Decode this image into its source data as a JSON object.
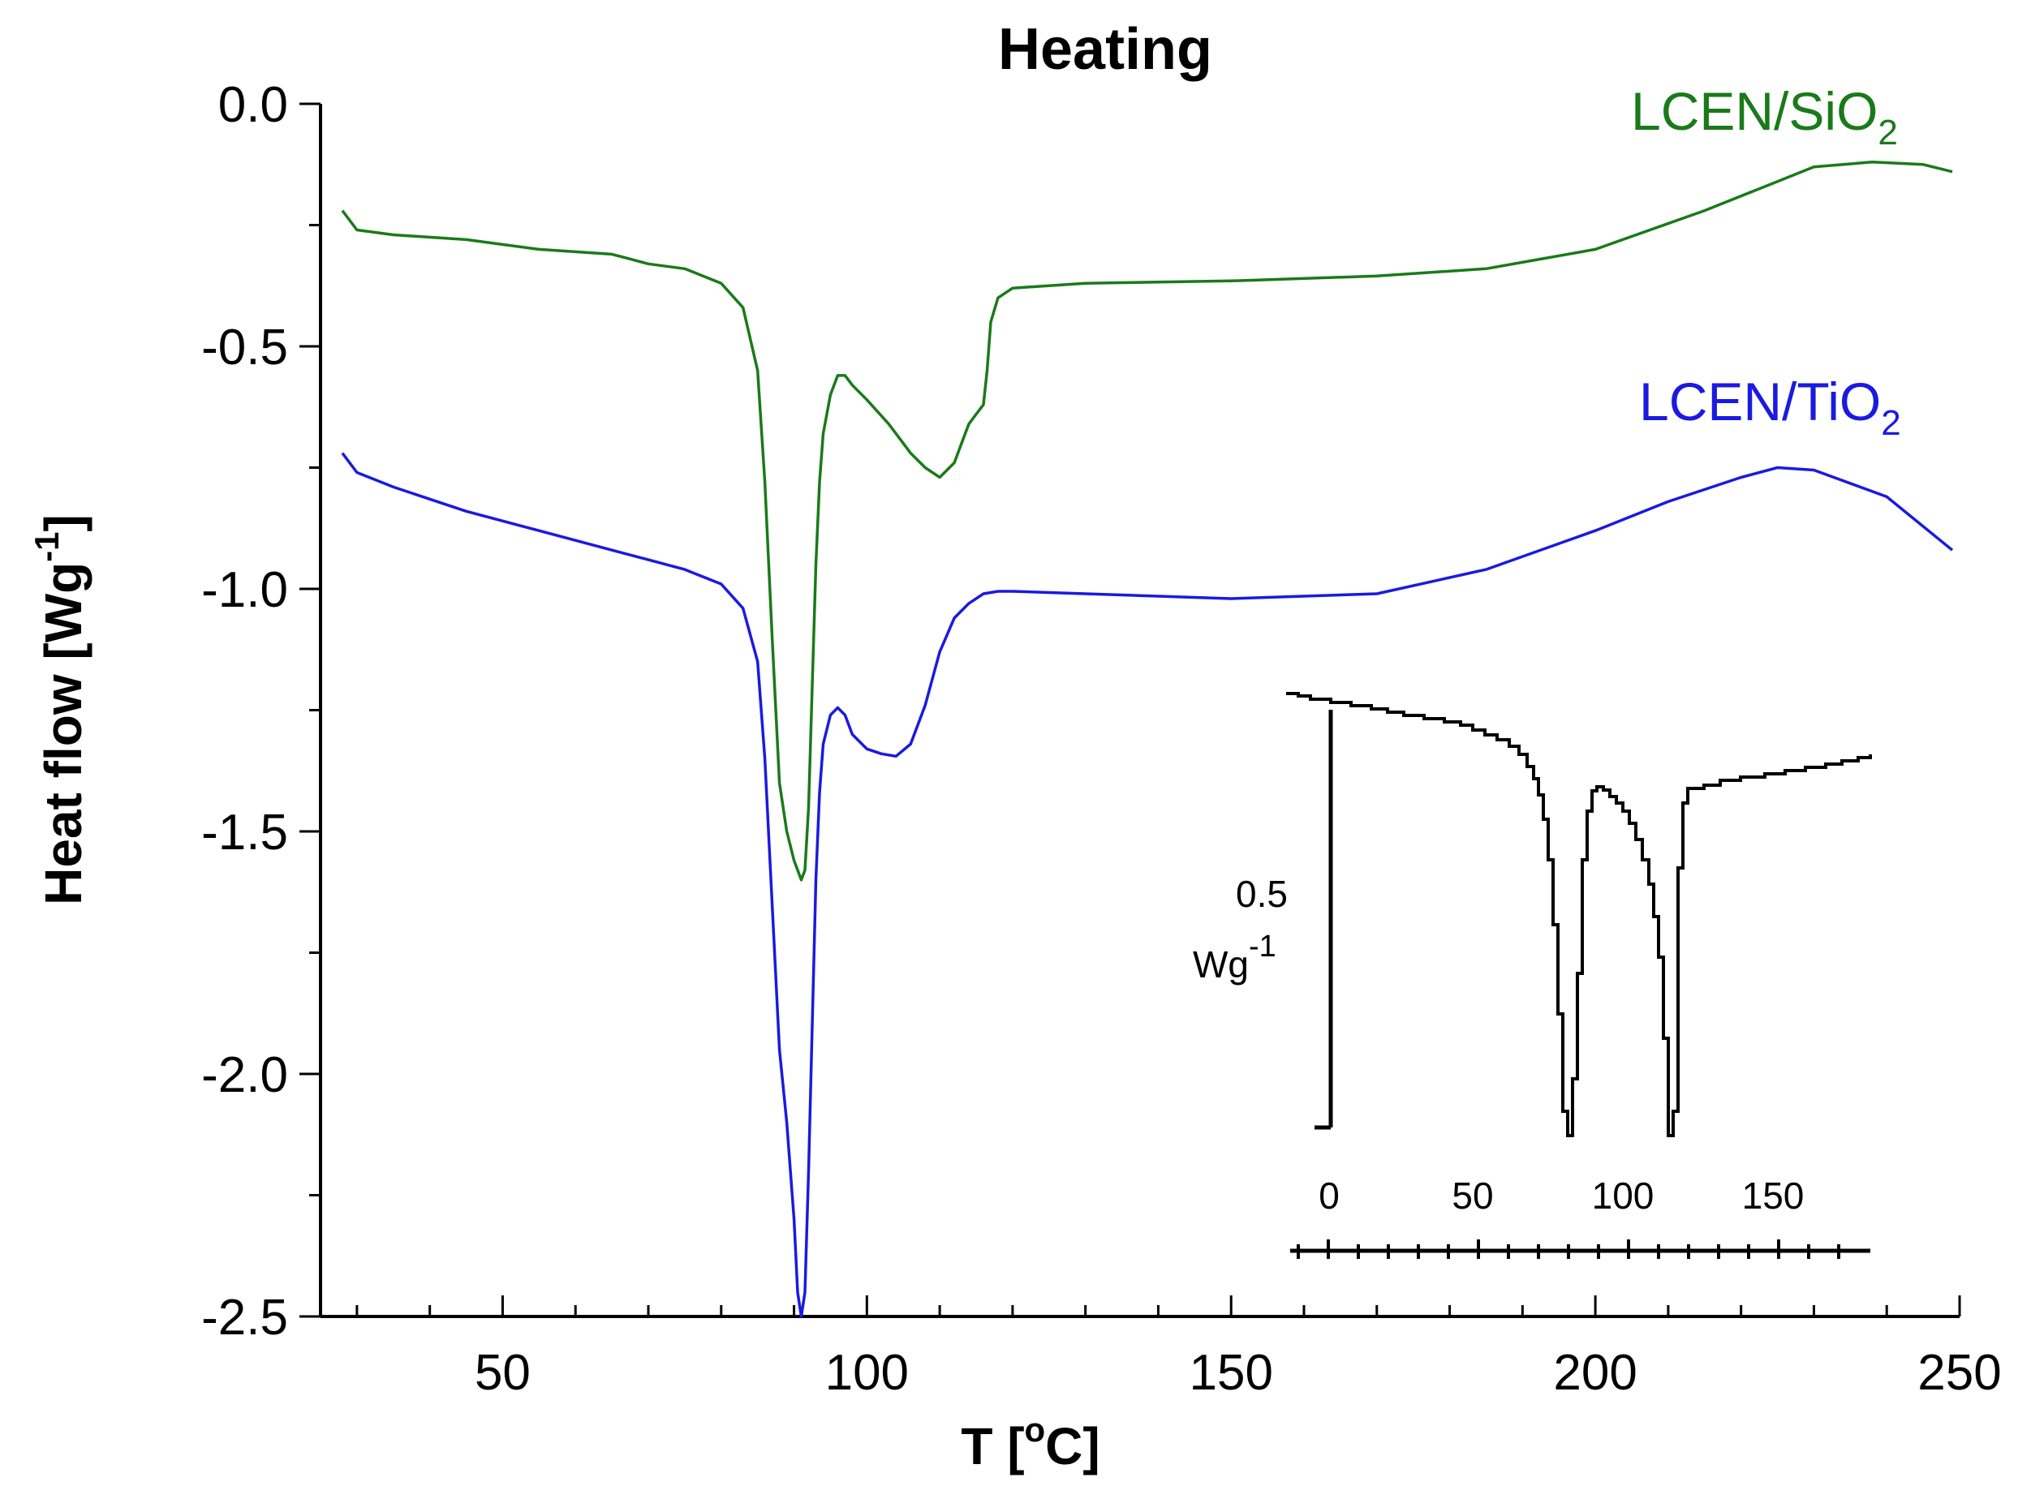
{
  "chart_data": {
    "type": "line",
    "title": "Heating",
    "xlabel": "T [°C]",
    "ylabel": "Heat flow [Wg-1]",
    "ylabel_main": "Heat flow [Wg",
    "ylabel_sup": "-1",
    "ylabel_end": "]",
    "xlabel_main": "T [",
    "xlabel_sup": "o",
    "xlabel_end": "C]",
    "xlim": [
      25,
      250
    ],
    "ylim": [
      -2.5,
      0.0
    ],
    "xticks": [
      50,
      100,
      150,
      200,
      250
    ],
    "xtick_labels": [
      "50",
      "100",
      "150",
      "200",
      "250"
    ],
    "yticks": [
      0.0,
      -0.5,
      -1.0,
      -1.5,
      -2.0,
      -2.5
    ],
    "ytick_labels": [
      "0.0",
      "-0.5",
      "-1.0",
      "-1.5",
      "-2.0",
      "-2.5"
    ],
    "series": [
      {
        "name": "LCEN/SiO2",
        "label_main": "LCEN/SiO",
        "label_sub": "2",
        "color": "#1a7a1a",
        "x": [
          28,
          30,
          35,
          45,
          55,
          65,
          70,
          75,
          80,
          83,
          85,
          86,
          87,
          88,
          89,
          90,
          91,
          91.5,
          92,
          92.5,
          93,
          93.5,
          94,
          95,
          96,
          97,
          98,
          100,
          103,
          106,
          108,
          110,
          112,
          113,
          114,
          115,
          116,
          116.5,
          117,
          118,
          120,
          130,
          150,
          170,
          185,
          200,
          215,
          225,
          230,
          238,
          245,
          249
        ],
        "y": [
          -0.22,
          -0.26,
          -0.27,
          -0.28,
          -0.3,
          -0.31,
          -0.33,
          -0.34,
          -0.37,
          -0.42,
          -0.55,
          -0.78,
          -1.1,
          -1.4,
          -1.5,
          -1.56,
          -1.6,
          -1.58,
          -1.45,
          -1.2,
          -0.95,
          -0.78,
          -0.68,
          -0.6,
          -0.56,
          -0.56,
          -0.58,
          -0.61,
          -0.66,
          -0.72,
          -0.75,
          -0.77,
          -0.74,
          -0.7,
          -0.66,
          -0.64,
          -0.62,
          -0.55,
          -0.45,
          -0.4,
          -0.38,
          -0.37,
          -0.365,
          -0.355,
          -0.34,
          -0.3,
          -0.22,
          -0.16,
          -0.13,
          -0.12,
          -0.125,
          -0.14
        ]
      },
      {
        "name": "LCEN/TiO2",
        "label_main": "LCEN/TiO",
        "label_sub": "2",
        "color": "#1a1ae0",
        "x": [
          28,
          30,
          35,
          45,
          55,
          65,
          70,
          75,
          80,
          83,
          85,
          86,
          87,
          88,
          89,
          90,
          90.5,
          91,
          91.5,
          92,
          92.5,
          93,
          93.5,
          94,
          95,
          96,
          97,
          98,
          100,
          102,
          104,
          106,
          108,
          110,
          112,
          114,
          116,
          118,
          120,
          130,
          150,
          170,
          185,
          200,
          210,
          220,
          225,
          230,
          240,
          249
        ],
        "y": [
          -0.72,
          -0.76,
          -0.79,
          -0.84,
          -0.88,
          -0.92,
          -0.94,
          -0.96,
          -0.99,
          -1.04,
          -1.15,
          -1.35,
          -1.65,
          -1.95,
          -2.1,
          -2.3,
          -2.45,
          -2.5,
          -2.45,
          -2.2,
          -1.9,
          -1.6,
          -1.42,
          -1.32,
          -1.26,
          -1.245,
          -1.26,
          -1.3,
          -1.33,
          -1.34,
          -1.345,
          -1.32,
          -1.24,
          -1.13,
          -1.06,
          -1.03,
          -1.01,
          -1.005,
          -1.005,
          -1.01,
          -1.02,
          -1.01,
          -0.96,
          -0.88,
          -0.82,
          -0.77,
          -0.75,
          -0.755,
          -0.81,
          -0.92
        ]
      }
    ],
    "inset": {
      "scale_value": "0.5",
      "scale_unit_main": "Wg",
      "scale_unit_sup": "-1",
      "xtick_labels": [
        "0",
        "50",
        "100",
        "150"
      ],
      "note": "inset step trace"
    }
  }
}
